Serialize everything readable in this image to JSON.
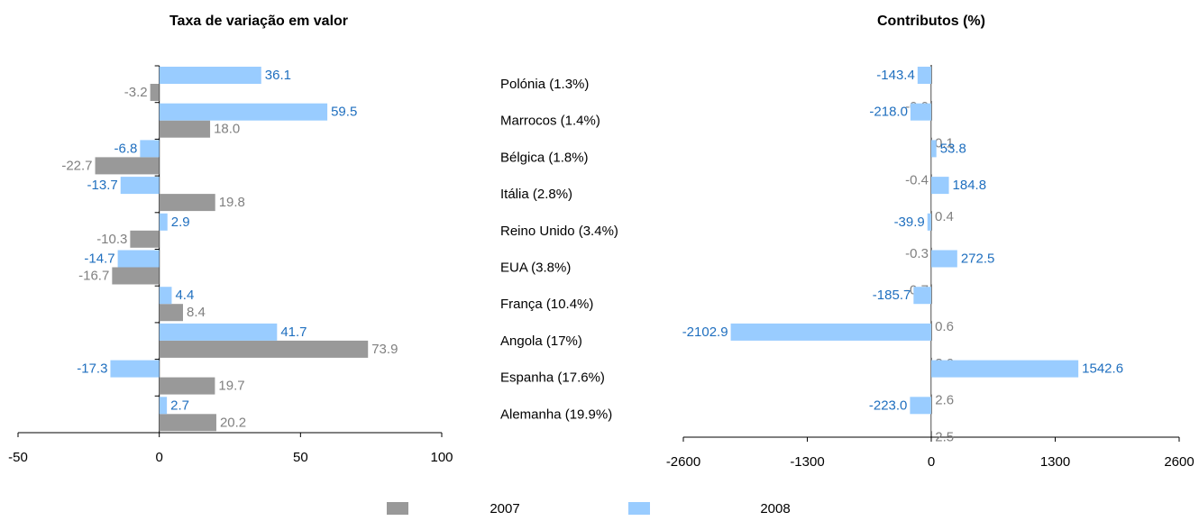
{
  "chart_data": [
    {
      "type": "bar",
      "horizontal": true,
      "title": "Taxa de variação em valor",
      "xlim": [
        -50,
        100
      ],
      "xticks": [
        -50,
        0,
        50,
        100
      ],
      "series": [
        {
          "name": "2007",
          "color": "#999999",
          "label_color": "#808080",
          "values": [
            -3.2,
            18.0,
            -22.7,
            19.8,
            -10.3,
            -16.7,
            8.4,
            73.9,
            19.7,
            20.2
          ],
          "value_labels": [
            "-3.2",
            "18.0",
            "-22.7",
            "19.8",
            "-10.3",
            "-16.7",
            "8.4",
            "73.9",
            "19.7",
            "20.2"
          ]
        },
        {
          "name": "2008",
          "color": "#99ccff",
          "label_color": "#1f6fbf",
          "values": [
            36.1,
            59.5,
            -6.8,
            -13.7,
            2.9,
            -14.7,
            4.4,
            41.7,
            -17.3,
            2.7
          ],
          "value_labels": [
            "36.1",
            "59.5",
            "-6.8",
            "-13.7",
            "2.9",
            "-14.7",
            "4.4",
            "41.7",
            "-17.3",
            "2.7"
          ]
        }
      ]
    },
    {
      "type": "bar",
      "horizontal": true,
      "title": "Contributos (%)",
      "categories": [
        "Polónia (1.3%)",
        "Marrocos (1.4%)",
        "Bélgica (1.8%)",
        "Itália (2.8%)",
        "Reino Unido (3.4%)",
        "EUA (3.8%)",
        "França (10.4%)",
        "Angola (17%)",
        "Espanha (17.6%)",
        "Alemanha (19.9%)"
      ],
      "xlim": [
        -2600,
        2600
      ],
      "xticks": [
        -2600,
        -1300,
        0,
        1300,
        2600
      ],
      "series": [
        {
          "color": "#999999",
          "label_color": "#808080",
          "values": [
            -0.0,
            0.1,
            -0.4,
            0.4,
            -0.3,
            -0.7,
            0.6,
            3.9,
            2.6,
            2.5
          ],
          "value_labels": [
            "-0.0",
            "0.1",
            "-0.4",
            "0.4",
            "-0.3",
            "-0.7",
            "0.6",
            "3.9",
            "2.6",
            "2.5"
          ]
        },
        {
          "color": "#99ccff",
          "label_color": "#1f6fbf",
          "values": [
            -143.4,
            -218.0,
            53.8,
            184.8,
            -39.9,
            272.5,
            -185.7,
            -2102.9,
            1542.6,
            -223.0
          ],
          "value_labels": [
            "-143.4",
            "-218.0",
            "53.8",
            "184.8",
            "-39.9",
            "272.5",
            "-185.7",
            "-2102.9",
            "1542.6",
            "-223.0"
          ]
        }
      ]
    }
  ]
}
